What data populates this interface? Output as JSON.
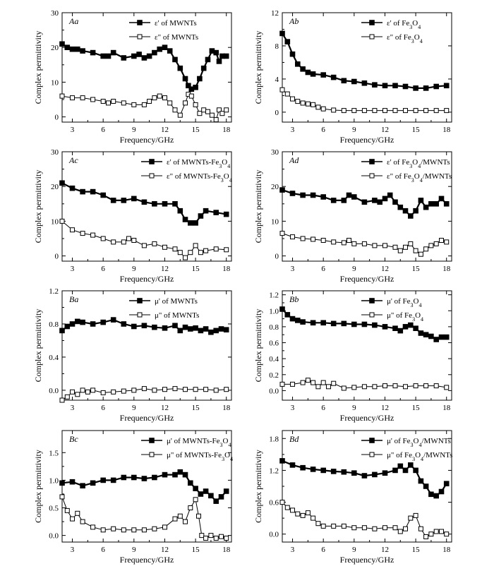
{
  "figure": {
    "ylabel": "Complex permittivity",
    "xlabel": "Frequency/GHz"
  },
  "chart_data": [
    {
      "type": "line",
      "panel_label": "Aa",
      "xlabel": "Frequency/GHz",
      "ylabel": "Complex permittivity",
      "xlim": [
        2,
        18.5
      ],
      "ylim": [
        -1.5,
        30
      ],
      "xticks": [
        3,
        6,
        9,
        12,
        15,
        18
      ],
      "yticks": [
        0,
        10,
        20,
        30
      ],
      "legend_position": "top-center",
      "series": [
        {
          "name": "ε' of MWNTs",
          "marker": "filled-square",
          "x": [
            2,
            2.5,
            3,
            3.5,
            4,
            5,
            6,
            6.5,
            7,
            8,
            9,
            9.5,
            10,
            10.5,
            11,
            11.5,
            12,
            12.5,
            13,
            13.5,
            14,
            14.3,
            14.6,
            15,
            15.4,
            15.8,
            16.2,
            16.6,
            17,
            17.3,
            17.6,
            18
          ],
          "y": [
            21,
            20,
            19.5,
            19.5,
            19,
            18.5,
            17.5,
            17.5,
            18.5,
            17,
            17.5,
            18,
            17,
            17.5,
            18.5,
            19.5,
            20,
            19,
            16.5,
            14,
            11,
            9,
            8,
            8.5,
            11,
            14,
            16.5,
            19,
            18.5,
            16,
            17.5,
            17.5
          ]
        },
        {
          "name": "ε\" of MWNTs",
          "marker": "open-square",
          "x": [
            2,
            3,
            4,
            5,
            6,
            6.5,
            7,
            8,
            9,
            10,
            10.5,
            11,
            11.5,
            12,
            12.5,
            13,
            13.5,
            14,
            14.3,
            14.6,
            15,
            15.4,
            15.8,
            16.2,
            16.6,
            17,
            17.3,
            17.6,
            18
          ],
          "y": [
            6,
            5.5,
            5.5,
            5,
            4.5,
            4,
            4.5,
            4,
            3.5,
            3.5,
            4.5,
            5.5,
            6,
            5.5,
            4,
            2,
            0.5,
            4,
            6.5,
            6,
            3.5,
            1,
            2,
            1.5,
            0.5,
            -0.8,
            2,
            1,
            2
          ]
        }
      ]
    },
    {
      "type": "line",
      "panel_label": "Ab",
      "xlabel": "Frequency/GHz",
      "ylabel": "Complex permittivity",
      "xlim": [
        2,
        18.5
      ],
      "ylim": [
        -1.2,
        12
      ],
      "xticks": [
        3,
        6,
        9,
        12,
        15,
        18
      ],
      "yticks": [
        0,
        4,
        8,
        12
      ],
      "legend_position": "top-right",
      "series": [
        {
          "name": "ε' of Fe3O4",
          "marker": "filled-square",
          "x": [
            2,
            2.5,
            3,
            3.5,
            4,
            4.5,
            5,
            6,
            7,
            8,
            9,
            10,
            11,
            12,
            13,
            14,
            15,
            16,
            17,
            18
          ],
          "y": [
            9.5,
            8.5,
            7,
            5.8,
            5.2,
            4.8,
            4.6,
            4.5,
            4.2,
            3.8,
            3.7,
            3.5,
            3.3,
            3.2,
            3.2,
            3.1,
            2.9,
            2.9,
            3.1,
            3.2
          ]
        },
        {
          "name": "ε\" of Fe3O4",
          "marker": "open-square",
          "x": [
            2,
            2.5,
            3,
            3.5,
            4,
            4.5,
            5,
            5.5,
            6,
            7,
            8,
            9,
            10,
            11,
            12,
            13,
            14,
            15,
            16,
            17,
            18
          ],
          "y": [
            2.7,
            2.2,
            1.6,
            1.3,
            1.1,
            1.0,
            0.9,
            0.6,
            0.4,
            0.25,
            0.2,
            0.2,
            0.2,
            0.2,
            0.2,
            0.2,
            0.2,
            0.2,
            0.2,
            0.2,
            0.2
          ]
        }
      ]
    },
    {
      "type": "line",
      "panel_label": "Ac",
      "xlabel": "Frequency/GHz",
      "ylabel": "Complex permittivity",
      "xlim": [
        2,
        18.5
      ],
      "ylim": [
        -1.5,
        30
      ],
      "xticks": [
        3,
        6,
        9,
        12,
        15,
        18
      ],
      "yticks": [
        0,
        10,
        20,
        30
      ],
      "legend_position": "top-right",
      "series": [
        {
          "name": "ε' of MWNTs-Fe3O4",
          "marker": "filled-square",
          "x": [
            2,
            3,
            4,
            5,
            6,
            7,
            8,
            9,
            10,
            11,
            12,
            13,
            13.5,
            14,
            14.5,
            15,
            15.5,
            16,
            17,
            18
          ],
          "y": [
            21,
            19.5,
            18.5,
            18.5,
            17.5,
            16,
            16,
            16.5,
            15.5,
            15,
            15,
            15,
            13,
            10.5,
            9.5,
            9.5,
            11.5,
            13,
            12.5,
            12
          ]
        },
        {
          "name": "ε\" of MWNTs-Fe3O4",
          "marker": "open-square",
          "x": [
            2,
            3,
            4,
            5,
            6,
            7,
            8,
            8.5,
            9,
            10,
            11,
            12,
            13,
            13.5,
            14,
            14.5,
            15,
            15.5,
            16,
            17,
            18
          ],
          "y": [
            10,
            7.5,
            6.5,
            6,
            5,
            4,
            4,
            5,
            4.5,
            3,
            3.5,
            2.5,
            2,
            1,
            -0.5,
            1,
            3,
            1,
            1.5,
            2,
            1.8
          ]
        }
      ]
    },
    {
      "type": "line",
      "panel_label": "Ad",
      "xlabel": "Frequency/GHz",
      "ylabel": "Complex permittivity",
      "xlim": [
        2,
        18.5
      ],
      "ylim": [
        -1.5,
        30
      ],
      "xticks": [
        3,
        6,
        9,
        12,
        15,
        18
      ],
      "yticks": [
        0,
        10,
        20,
        30
      ],
      "legend_position": "top-right",
      "series": [
        {
          "name": "ε' of Fe3O4/MWNTs",
          "marker": "filled-square",
          "x": [
            2,
            3,
            4,
            5,
            6,
            7,
            8,
            8.5,
            9,
            10,
            11,
            11.5,
            12,
            12.5,
            13,
            13.5,
            14,
            14.5,
            15,
            15.5,
            16,
            16.5,
            17,
            17.5,
            18
          ],
          "y": [
            19,
            18,
            17.5,
            17.5,
            17,
            16,
            16,
            17.5,
            17,
            15.5,
            16,
            15.5,
            16.5,
            17.5,
            15.5,
            14,
            13,
            11.5,
            13,
            16,
            14,
            15,
            15,
            16.5,
            15
          ]
        },
        {
          "name": "ε\" of Fe3O4/MWNTs",
          "marker": "open-square",
          "x": [
            2,
            3,
            4,
            5,
            6,
            7,
            8,
            8.5,
            9,
            10,
            11,
            12,
            13,
            13.5,
            14,
            14.5,
            15,
            15.5,
            16,
            16.5,
            17,
            17.5,
            18
          ],
          "y": [
            6.5,
            5.5,
            5,
            4.8,
            4.5,
            4,
            3.8,
            4.5,
            3.5,
            3.5,
            3,
            3,
            2.5,
            1.5,
            2.5,
            3.5,
            1.5,
            0.5,
            2,
            3,
            3.5,
            4.5,
            4
          ]
        }
      ]
    },
    {
      "type": "line",
      "panel_label": "Ba",
      "xlabel": "Frequency/GHz",
      "ylabel": "Complex permittivity",
      "xlim": [
        2,
        18.5
      ],
      "ylim": [
        -0.12,
        1.2
      ],
      "xticks": [
        3,
        6,
        9,
        12,
        15,
        18
      ],
      "yticks": [
        0.0,
        0.4,
        0.8,
        1.2
      ],
      "legend_position": "top-center",
      "series": [
        {
          "name": "μ' of MWNTs",
          "marker": "filled-square",
          "x": [
            2,
            2.5,
            3,
            3.5,
            4,
            5,
            6,
            7,
            8,
            9,
            10,
            11,
            12,
            13,
            13.5,
            14,
            14.5,
            15,
            15.5,
            16,
            16.5,
            17,
            17.5,
            18
          ],
          "y": [
            0.72,
            0.77,
            0.8,
            0.83,
            0.82,
            0.8,
            0.82,
            0.85,
            0.8,
            0.77,
            0.78,
            0.76,
            0.75,
            0.78,
            0.72,
            0.76,
            0.74,
            0.75,
            0.72,
            0.74,
            0.7,
            0.72,
            0.74,
            0.73
          ]
        },
        {
          "name": "μ\" of MWNTs",
          "marker": "open-square",
          "x": [
            2,
            2.5,
            3,
            3.5,
            4,
            4.5,
            5,
            6,
            7,
            8,
            9,
            10,
            11,
            12,
            13,
            14,
            15,
            16,
            17,
            18
          ],
          "y": [
            -0.12,
            -0.08,
            -0.02,
            -0.05,
            0.0,
            -0.02,
            0.0,
            -0.03,
            -0.02,
            -0.01,
            0.0,
            0.02,
            0.0,
            0.01,
            0.02,
            0.01,
            0.01,
            0.01,
            0.0,
            0.01
          ]
        }
      ]
    },
    {
      "type": "line",
      "panel_label": "Bb",
      "xlabel": "Frequency/GHz",
      "ylabel": "Complex permittivity",
      "xlim": [
        2,
        18.5
      ],
      "ylim": [
        -0.12,
        1.25
      ],
      "xticks": [
        3,
        6,
        9,
        12,
        15,
        18
      ],
      "yticks": [
        0.0,
        0.2,
        0.4,
        0.6,
        0.8,
        1.0,
        1.2
      ],
      "legend_position": "top-right",
      "series": [
        {
          "name": "μ' of Fe3O4",
          "marker": "filled-square",
          "x": [
            2,
            2.5,
            3,
            3.5,
            4,
            5,
            6,
            7,
            8,
            9,
            10,
            11,
            12,
            13,
            13.5,
            14,
            14.5,
            15,
            15.5,
            16,
            16.5,
            17,
            17.5,
            18
          ],
          "y": [
            1.02,
            0.95,
            0.9,
            0.88,
            0.86,
            0.85,
            0.85,
            0.84,
            0.84,
            0.83,
            0.83,
            0.82,
            0.8,
            0.78,
            0.75,
            0.8,
            0.82,
            0.78,
            0.72,
            0.7,
            0.68,
            0.64,
            0.67,
            0.67
          ]
        },
        {
          "name": "μ\" of Fe3O4",
          "marker": "open-square",
          "x": [
            2,
            3,
            4,
            4.5,
            5,
            5.5,
            6,
            6.5,
            7,
            8,
            9,
            10,
            11,
            12,
            13,
            14,
            15,
            16,
            17,
            18
          ],
          "y": [
            0.08,
            0.08,
            0.1,
            0.13,
            0.1,
            0.05,
            0.1,
            0.05,
            0.09,
            0.03,
            0.04,
            0.05,
            0.05,
            0.06,
            0.06,
            0.05,
            0.06,
            0.06,
            0.06,
            0.04
          ]
        }
      ]
    },
    {
      "type": "line",
      "panel_label": "Bc",
      "xlabel": "Frequency/GHz",
      "ylabel": "Complex permittivity",
      "xlim": [
        2,
        18.5
      ],
      "ylim": [
        -0.12,
        1.9
      ],
      "xticks": [
        3,
        6,
        9,
        12,
        15,
        18
      ],
      "yticks": [
        0.0,
        0.5,
        1.0,
        1.5
      ],
      "legend_position": "top-right",
      "series": [
        {
          "name": "μ' of MWNTs-Fe3O4",
          "marker": "filled-square",
          "x": [
            2,
            3,
            4,
            5,
            6,
            7,
            8,
            9,
            10,
            11,
            12,
            13,
            13.5,
            14,
            14.5,
            15,
            15.5,
            16,
            16.5,
            17,
            17.5,
            18
          ],
          "y": [
            0.95,
            0.97,
            0.9,
            0.95,
            1.0,
            1.0,
            1.05,
            1.05,
            1.03,
            1.05,
            1.1,
            1.1,
            1.15,
            1.1,
            0.95,
            0.85,
            0.75,
            0.8,
            0.72,
            0.62,
            0.7,
            0.8
          ]
        },
        {
          "name": "μ\" of MWNTs-Fe3O4",
          "marker": "open-square",
          "x": [
            2,
            2.5,
            3,
            3.5,
            4,
            5,
            6,
            7,
            8,
            9,
            10,
            11,
            12,
            13,
            13.5,
            14,
            14.5,
            15,
            15.3,
            15.6,
            16,
            16.5,
            17,
            17.5,
            18
          ],
          "y": [
            0.7,
            0.45,
            0.3,
            0.4,
            0.25,
            0.15,
            0.1,
            0.12,
            0.1,
            0.1,
            0.1,
            0.12,
            0.15,
            0.3,
            0.35,
            0.25,
            0.5,
            0.65,
            0.35,
            0.0,
            -0.05,
            0.0,
            -0.05,
            -0.02,
            -0.05
          ]
        }
      ]
    },
    {
      "type": "line",
      "panel_label": "Bd",
      "xlabel": "Frequency/GHz",
      "ylabel": "Complex permittivity",
      "xlim": [
        2,
        18.5
      ],
      "ylim": [
        -0.15,
        1.95
      ],
      "xticks": [
        3,
        6,
        9,
        12,
        15,
        18
      ],
      "yticks": [
        0.0,
        0.6,
        1.2,
        1.8
      ],
      "legend_position": "top-right",
      "series": [
        {
          "name": "μ' of Fe3O4/MWNTs",
          "marker": "filled-square",
          "x": [
            2,
            3,
            4,
            5,
            6,
            7,
            8,
            9,
            10,
            11,
            12,
            13,
            13.5,
            14,
            14.5,
            15,
            15.5,
            16,
            16.5,
            17,
            17.5,
            18
          ],
          "y": [
            1.38,
            1.3,
            1.25,
            1.22,
            1.2,
            1.18,
            1.17,
            1.15,
            1.1,
            1.12,
            1.15,
            1.2,
            1.28,
            1.2,
            1.3,
            1.2,
            1.0,
            0.9,
            0.75,
            0.72,
            0.8,
            0.95
          ]
        },
        {
          "name": "μ\" of Fe3O4/MWNTs",
          "marker": "open-square",
          "x": [
            2,
            2.5,
            3,
            3.5,
            4,
            4.5,
            5,
            5.5,
            6,
            7,
            8,
            9,
            10,
            11,
            12,
            13,
            13.5,
            14,
            14.5,
            15,
            15.5,
            16,
            16.5,
            17,
            17.5,
            18
          ],
          "y": [
            0.6,
            0.5,
            0.45,
            0.38,
            0.35,
            0.4,
            0.3,
            0.2,
            0.15,
            0.15,
            0.15,
            0.12,
            0.12,
            0.1,
            0.12,
            0.12,
            0.05,
            0.1,
            0.3,
            0.35,
            0.1,
            -0.05,
            0.0,
            0.05,
            0.05,
            0.0
          ]
        }
      ]
    }
  ]
}
